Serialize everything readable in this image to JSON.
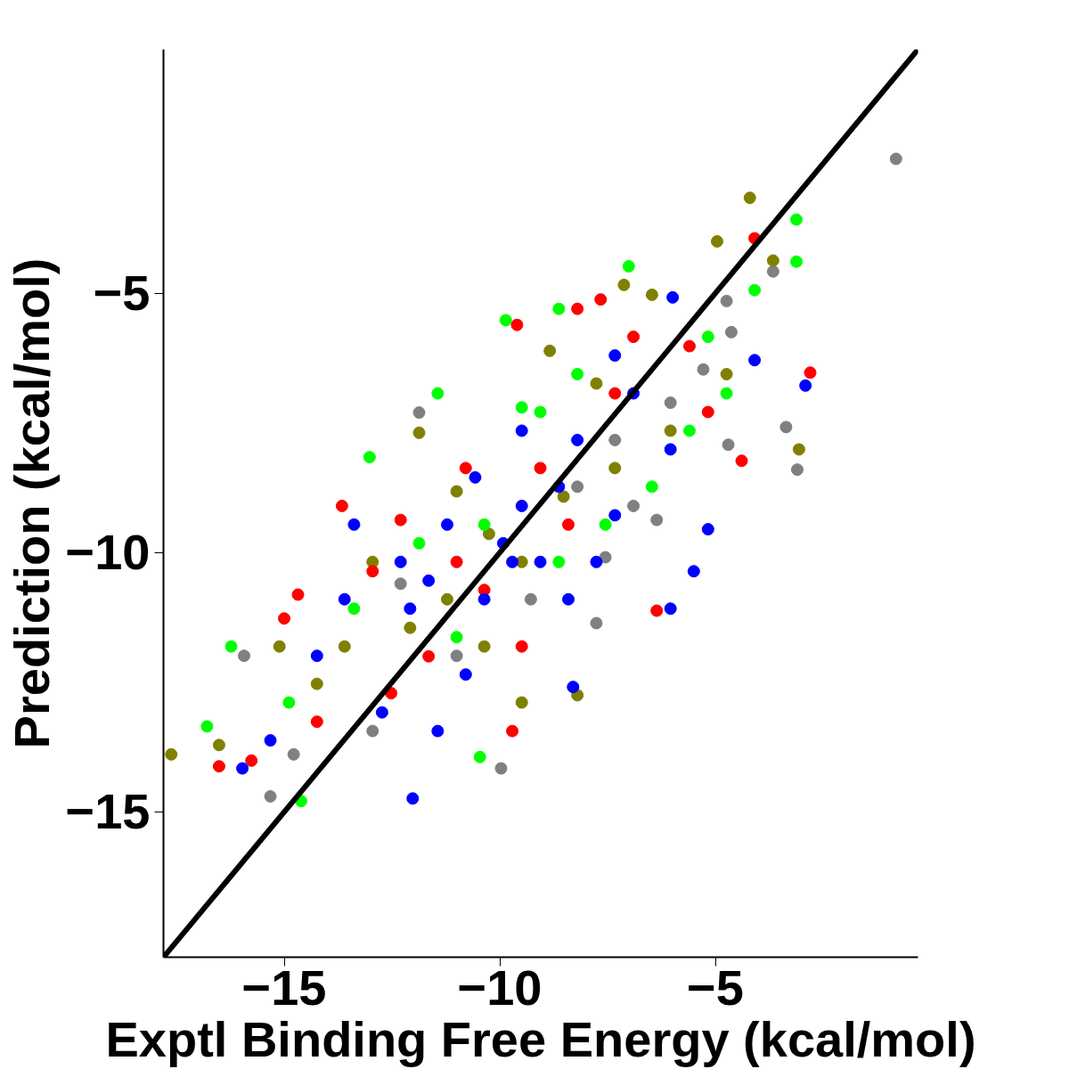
{
  "chart_data": {
    "type": "scatter",
    "xlabel": "Exptl Binding Free Energy (kcal/mol)",
    "ylabel": "Prediction (kcal/mol)",
    "xlim": [
      -17.8,
      -0.3
    ],
    "ylim": [
      -17.8,
      -0.3
    ],
    "xticks": [
      {
        "value": -15,
        "label": "−15"
      },
      {
        "value": -10,
        "label": "−10"
      },
      {
        "value": -5,
        "label": "−5"
      }
    ],
    "yticks": [
      {
        "value": -15,
        "label": "−15"
      },
      {
        "value": -10,
        "label": "−10"
      },
      {
        "value": -5,
        "label": "−5"
      }
    ],
    "grid": false,
    "marker": "circle",
    "series": [
      {
        "color": "#808080",
        "x": [
          -0.81,
          -3.36,
          -3.1,
          -4.74,
          -15.32,
          -15.93,
          -9.97,
          -7.76,
          -6.36,
          -4.7,
          -7.55,
          -6.9,
          -11.87,
          -14.78,
          -8.2,
          -3.66,
          -4.63,
          -9.28,
          -12.3,
          -11.0,
          -12.95,
          -7.33,
          -6.04,
          -5.28
        ],
        "values": [
          -2.41,
          -7.58,
          -8.4,
          -5.15,
          -14.7,
          -11.99,
          -14.16,
          -11.36,
          -9.37,
          -7.92,
          -10.09,
          -9.1,
          -7.3,
          -13.89,
          -8.73,
          -4.58,
          -5.75,
          -10.9,
          -10.6,
          -11.99,
          -13.44,
          -7.83,
          -7.11,
          -6.47
        ]
      },
      {
        "color": "#808000",
        "x": [
          -4.2,
          -4.96,
          -17.62,
          -3.06,
          -3.66,
          -8.2,
          -9.49,
          -11.87,
          -7.12,
          -6.47,
          -8.84,
          -11.0,
          -12.95,
          -14.24,
          -15.11,
          -16.51,
          -10.36,
          -7.33,
          -6.04,
          -7.76,
          -9.49,
          -12.08,
          -13.6,
          -4.74,
          -8.52,
          -10.25,
          -11.22
        ],
        "values": [
          -3.16,
          -4.0,
          -13.89,
          -8.01,
          -4.37,
          -12.75,
          -12.89,
          -7.69,
          -4.84,
          -5.03,
          -6.11,
          -8.82,
          -10.18,
          -12.53,
          -11.81,
          -13.71,
          -11.81,
          -8.37,
          -7.65,
          -6.74,
          -10.18,
          -11.45,
          -11.81,
          -6.56,
          -8.92,
          -9.64,
          -10.9
        ]
      },
      {
        "color": "#ff0000",
        "x": [
          -9.6,
          -7.66,
          -2.8,
          -4.09,
          -4.39,
          -6.36,
          -13.66,
          -14.68,
          -16.51,
          -15.76,
          -8.2,
          -6.9,
          -10.79,
          -12.3,
          -12.95,
          -11.65,
          -9.49,
          -10.36,
          -8.41,
          -7.33,
          -5.6,
          -5.17,
          -14.24,
          -15.0,
          -12.52,
          -11.0,
          -9.06,
          -9.71
        ],
        "values": [
          -5.61,
          -5.12,
          -6.53,
          -3.94,
          -8.23,
          -11.12,
          -9.1,
          -10.81,
          -14.12,
          -14.01,
          -5.3,
          -5.84,
          -8.37,
          -9.37,
          -10.36,
          -12.0,
          -11.81,
          -10.72,
          -9.46,
          -6.93,
          -6.02,
          -7.29,
          -13.26,
          -11.27,
          -12.71,
          -10.18,
          -8.37,
          -13.44
        ]
      },
      {
        "color": "#00ff00",
        "x": [
          -3.12,
          -3.12,
          -7.01,
          -9.86,
          -11.44,
          -13.02,
          -16.79,
          -16.23,
          -14.61,
          -10.46,
          -8.63,
          -6.47,
          -5.17,
          -4.09,
          -4.74,
          -10.36,
          -11.87,
          -13.38,
          -14.89,
          -9.49,
          -8.2,
          -7.55,
          -11.0,
          -9.06,
          -5.6,
          -8.63
        ],
        "values": [
          -4.39,
          -3.58,
          -4.48,
          -5.52,
          -6.93,
          -8.16,
          -13.35,
          -11.81,
          -14.79,
          -13.94,
          -10.18,
          -8.73,
          -5.84,
          -4.94,
          -6.93,
          -9.46,
          -9.82,
          -11.08,
          -12.89,
          -7.2,
          -6.56,
          -9.46,
          -11.63,
          -7.29,
          -7.65,
          -5.3
        ]
      },
      {
        "color": "#0000ff",
        "x": [
          -12.02,
          -15.97,
          -5.5,
          -8.3,
          -2.91,
          -5.99,
          -10.57,
          -9.92,
          -9.49,
          -9.06,
          -11.65,
          -12.08,
          -11.22,
          -10.36,
          -8.63,
          -8.2,
          -7.33,
          -6.9,
          -6.04,
          -13.38,
          -13.6,
          -14.24,
          -15.32,
          -12.73,
          -11.44,
          -10.79,
          -7.33,
          -5.17,
          -4.09,
          -9.49,
          -9.71,
          -12.3,
          -7.76,
          -8.41,
          -6.04
        ],
        "values": [
          -14.74,
          -14.16,
          -10.36,
          -12.59,
          -6.78,
          -5.08,
          -8.55,
          -9.82,
          -9.1,
          -10.18,
          -10.54,
          -11.08,
          -9.46,
          -10.9,
          -8.73,
          -7.83,
          -6.2,
          -6.93,
          -8.01,
          -9.46,
          -10.9,
          -11.99,
          -13.62,
          -13.08,
          -13.44,
          -12.35,
          -9.28,
          -9.55,
          -6.29,
          -7.65,
          -10.18,
          -10.18,
          -10.18,
          -10.9,
          -11.08
        ]
      },
      {
        "type": "line",
        "marker": "none",
        "color": "#000000",
        "x": [
          -17.8,
          -0.3
        ],
        "values": [
          -17.8,
          -0.3
        ]
      }
    ]
  }
}
